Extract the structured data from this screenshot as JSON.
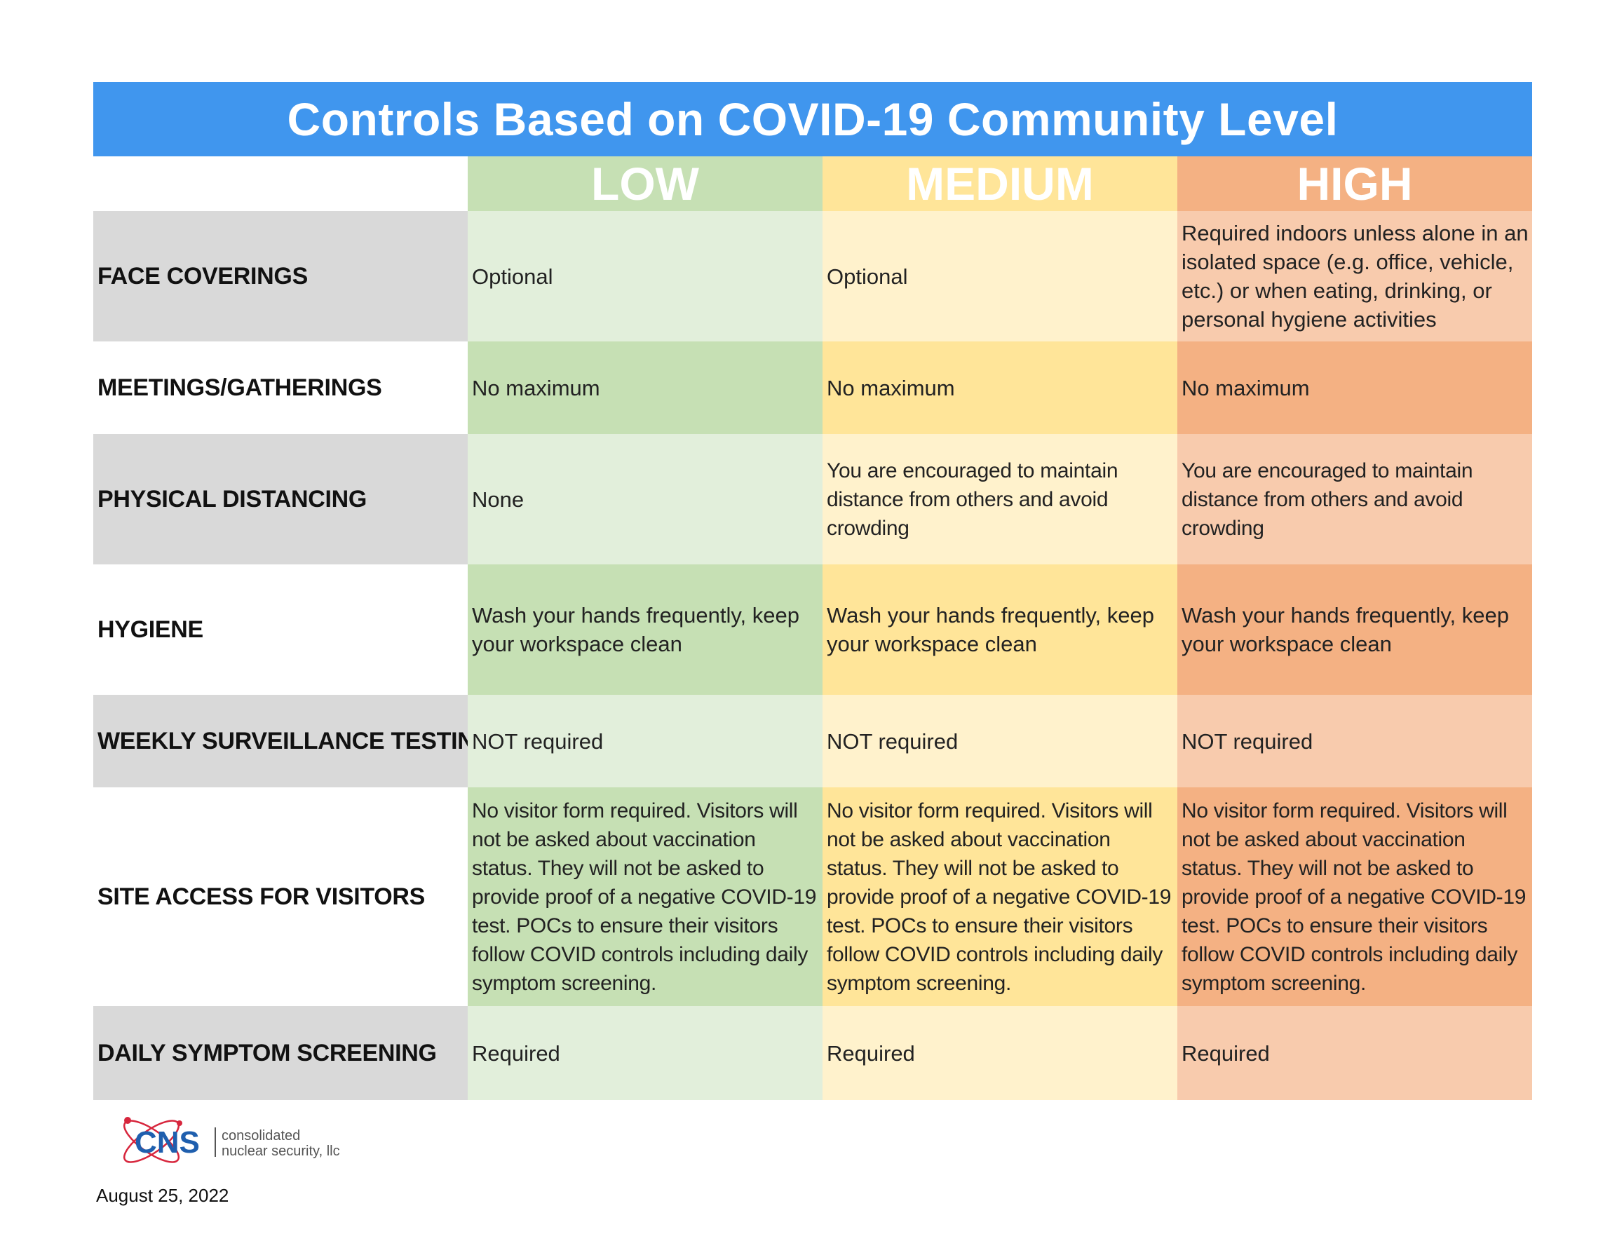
{
  "title": "Controls Based on COVID-19 Community Level",
  "levels": [
    "LOW",
    "MEDIUM",
    "HIGH"
  ],
  "colors": {
    "title_bar": "#4096ee",
    "low_light": "#e2efdb",
    "low_dark": "#c6e0b4",
    "medium_light": "#fff2cc",
    "medium_dark": "#ffe599",
    "high_light": "#f8cbad",
    "high_dark": "#f4b183",
    "label_shade": "#d9d9d9"
  },
  "rows": [
    {
      "label": "FACE COVERINGS",
      "low": "Optional",
      "medium": "Optional",
      "high": "Required indoors unless alone in an isolated space (e.g. office, vehicle, etc.) or when eating, drinking, or personal hygiene activities"
    },
    {
      "label": "MEETINGS/GATHERINGS",
      "low": "No maximum",
      "medium": "No maximum",
      "high": "No maximum"
    },
    {
      "label": "PHYSICAL DISTANCING",
      "low": "None",
      "medium": "You are encouraged to maintain distance from others and avoid crowding",
      "high": "You are encouraged to maintain distance from others and avoid crowding"
    },
    {
      "label": "HYGIENE",
      "low": "Wash your hands frequently, keep your workspace clean",
      "medium": "Wash your hands frequently, keep your workspace clean",
      "high": "Wash your hands frequently, keep your workspace clean"
    },
    {
      "label": "WEEKLY SURVEILLANCE TESTING",
      "low": "NOT required",
      "medium": "NOT required",
      "high": "NOT required"
    },
    {
      "label": "SITE ACCESS FOR VISITORS",
      "low": "No visitor form required.  Visitors will not be asked about vaccination status.  They will not be asked to provide proof of a negative COVID-19 test.  POCs to ensure their visitors follow COVID controls including daily symptom screening.",
      "medium": "No visitor form required.  Visitors will not be asked about vaccination status.  They will not be asked to provide proof of a negative COVID-19 test.  POCs to ensure their visitors follow COVID controls including daily symptom screening.",
      "high": "No visitor form required.  Visitors will not be asked about vaccination status.  They will not be asked to provide proof of a negative COVID-19 test.  POCs to ensure their visitors follow COVID controls including daily symptom screening."
    },
    {
      "label": "DAILY SYMPTOM SCREENING",
      "low": "Required",
      "medium": "Required",
      "high": "Required"
    }
  ],
  "logo": {
    "mark": "CNS",
    "line1": "consolidated",
    "line2": "nuclear security, llc"
  },
  "date": "August 25, 2022"
}
